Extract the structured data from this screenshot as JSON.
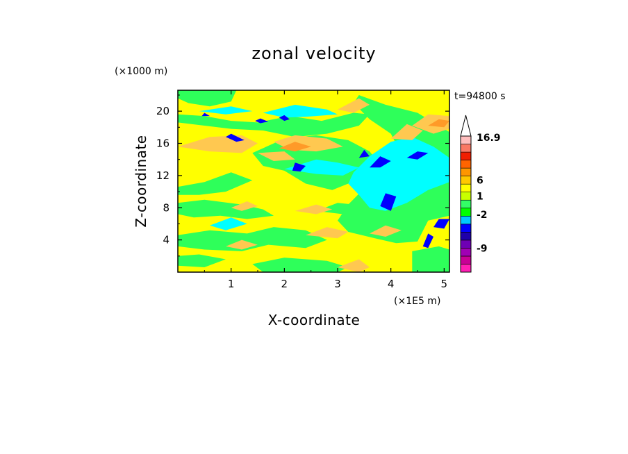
{
  "chart_data": {
    "type": "heatmap",
    "title": "zonal velocity",
    "xlabel": "X-coordinate",
    "ylabel": "Z-coordinate",
    "x_unit": "(×1E5 m)",
    "y_unit": "(×1000 m)",
    "time_label": "t=94800 s",
    "xlim": [
      0,
      5.1
    ],
    "ylim": [
      0,
      22.6
    ],
    "x_ticks": [
      1,
      2,
      3,
      4,
      5
    ],
    "y_ticks": [
      4,
      8,
      12,
      16,
      20
    ],
    "colorbar": {
      "labels": [
        {
          "value": "16.9",
          "level": 16.9
        },
        {
          "value": "6",
          "level": 6
        },
        {
          "value": "1",
          "level": 1
        },
        {
          "value": "-2",
          "level": -2
        },
        {
          "value": "-9",
          "level": -9
        }
      ],
      "bands": [
        {
          "color": "#ff1fb4"
        },
        {
          "color": "#c80096"
        },
        {
          "color": "#a000b4"
        },
        {
          "color": "#6e00b4"
        },
        {
          "color": "#1e00aa"
        },
        {
          "color": "#0000ff"
        },
        {
          "color": "#00c8ff"
        },
        {
          "color": "#00ff00"
        },
        {
          "color": "#33ff66"
        },
        {
          "color": "#c8ff00"
        },
        {
          "color": "#ffff00"
        },
        {
          "color": "#ffc800"
        },
        {
          "color": "#ff9600"
        },
        {
          "color": "#ff6400"
        },
        {
          "color": "#f01e00"
        },
        {
          "color": "#fa7864"
        },
        {
          "color": "#ffbebe"
        }
      ],
      "overflow_color": "#ffffff"
    },
    "field_colors": {
      "background": "#ffff00",
      "green": "#2eff5a",
      "cyan": "#00ffff",
      "blue": "#0000ff",
      "orange": "#ffc850",
      "dark_orange": "#ff9a28"
    },
    "features": [
      {
        "kind": "green",
        "points": [
          [
            0,
            22.6
          ],
          [
            1.1,
            22.6
          ],
          [
            1.0,
            21.2
          ],
          [
            0.6,
            20.6
          ],
          [
            0.2,
            21.0
          ],
          [
            0,
            21.6
          ]
        ]
      },
      {
        "kind": "green",
        "points": [
          [
            0,
            19.6
          ],
          [
            0.5,
            19.4
          ],
          [
            1.0,
            18.8
          ],
          [
            1.5,
            18.6
          ],
          [
            2.1,
            19.4
          ],
          [
            2.7,
            18.8
          ],
          [
            3.3,
            19.8
          ],
          [
            3.6,
            19.6
          ],
          [
            3.4,
            18.2
          ],
          [
            2.8,
            17.2
          ],
          [
            2.2,
            16.8
          ],
          [
            1.6,
            17.6
          ],
          [
            1.0,
            17.8
          ],
          [
            0.5,
            18.2
          ],
          [
            0,
            18.6
          ]
        ]
      },
      {
        "kind": "cyan",
        "points": [
          [
            0.4,
            20.0
          ],
          [
            1.0,
            20.6
          ],
          [
            1.4,
            20.0
          ],
          [
            0.9,
            19.6
          ]
        ]
      },
      {
        "kind": "cyan",
        "points": [
          [
            1.6,
            19.8
          ],
          [
            2.2,
            20.8
          ],
          [
            2.8,
            20.2
          ],
          [
            3.0,
            19.6
          ],
          [
            2.4,
            19.3
          ],
          [
            2.0,
            19.2
          ]
        ]
      },
      {
        "kind": "green",
        "points": [
          [
            1.4,
            14.8
          ],
          [
            2.0,
            16.6
          ],
          [
            2.6,
            17.0
          ],
          [
            3.2,
            16.4
          ],
          [
            3.6,
            15.0
          ],
          [
            3.8,
            13.4
          ],
          [
            3.4,
            12.4
          ],
          [
            3.2,
            11.0
          ],
          [
            2.9,
            10.2
          ],
          [
            2.4,
            11.0
          ],
          [
            2.0,
            12.6
          ],
          [
            1.6,
            13.2
          ]
        ]
      },
      {
        "kind": "cyan",
        "points": [
          [
            2.0,
            12.8
          ],
          [
            2.6,
            14.0
          ],
          [
            3.0,
            13.6
          ],
          [
            3.4,
            13.0
          ],
          [
            3.1,
            12.0
          ],
          [
            2.6,
            12.2
          ]
        ]
      },
      {
        "kind": "green",
        "points": [
          [
            0,
            10.6
          ],
          [
            0.5,
            11.2
          ],
          [
            1.0,
            12.4
          ],
          [
            1.4,
            11.4
          ],
          [
            0.9,
            10.0
          ],
          [
            0.4,
            9.6
          ],
          [
            0,
            9.6
          ]
        ]
      },
      {
        "kind": "green",
        "points": [
          [
            3.4,
            22.0
          ],
          [
            3.9,
            20.8
          ],
          [
            4.5,
            19.8
          ],
          [
            5.1,
            17.4
          ],
          [
            5.1,
            7.0
          ],
          [
            4.7,
            6.4
          ],
          [
            4.5,
            3.8
          ],
          [
            4.1,
            3.6
          ],
          [
            3.7,
            4.2
          ],
          [
            3.2,
            5.0
          ],
          [
            3.0,
            6.4
          ],
          [
            3.2,
            8.4
          ],
          [
            3.5,
            10.4
          ],
          [
            3.8,
            12.2
          ],
          [
            4.2,
            14.6
          ],
          [
            4.0,
            17.2
          ],
          [
            3.6,
            19.0
          ],
          [
            3.3,
            21.0
          ]
        ]
      },
      {
        "kind": "cyan",
        "points": [
          [
            3.3,
            12.4
          ],
          [
            3.6,
            14.4
          ],
          [
            4.0,
            16.2
          ],
          [
            4.4,
            16.8
          ],
          [
            4.8,
            15.6
          ],
          [
            5.1,
            14.2
          ],
          [
            5.1,
            11.2
          ],
          [
            4.7,
            10.2
          ],
          [
            4.3,
            8.6
          ],
          [
            3.9,
            7.6
          ],
          [
            3.6,
            8.0
          ],
          [
            3.4,
            9.6
          ],
          [
            3.2,
            11.0
          ]
        ]
      },
      {
        "kind": "cyan",
        "points": [
          [
            4.6,
            12.6
          ],
          [
            5.0,
            12.2
          ],
          [
            5.1,
            13.6
          ],
          [
            4.9,
            14.2
          ]
        ]
      },
      {
        "kind": "green",
        "points": [
          [
            0,
            8.6
          ],
          [
            0.5,
            9.0
          ],
          [
            1.2,
            8.4
          ],
          [
            1.6,
            7.8
          ],
          [
            1.8,
            7.0
          ],
          [
            1.3,
            6.6
          ],
          [
            0.8,
            7.0
          ],
          [
            0.3,
            6.8
          ],
          [
            0,
            7.2
          ]
        ]
      },
      {
        "kind": "cyan",
        "points": [
          [
            0.6,
            5.8
          ],
          [
            1.0,
            6.8
          ],
          [
            1.3,
            6.0
          ],
          [
            0.9,
            5.2
          ]
        ]
      },
      {
        "kind": "green",
        "points": [
          [
            0,
            4.6
          ],
          [
            0.6,
            5.2
          ],
          [
            1.3,
            4.8
          ],
          [
            1.8,
            5.6
          ],
          [
            2.4,
            5.2
          ],
          [
            2.8,
            4.0
          ],
          [
            2.4,
            3.0
          ],
          [
            1.7,
            3.4
          ],
          [
            1.2,
            2.6
          ],
          [
            0.5,
            2.8
          ],
          [
            0,
            3.2
          ]
        ]
      },
      {
        "kind": "green",
        "points": [
          [
            2.6,
            7.6
          ],
          [
            3.0,
            8.6
          ],
          [
            3.3,
            8.4
          ],
          [
            3.1,
            7.2
          ]
        ]
      },
      {
        "kind": "green",
        "points": [
          [
            0,
            2.0
          ],
          [
            0.4,
            2.2
          ],
          [
            0.9,
            1.6
          ],
          [
            0.5,
            0.6
          ],
          [
            0,
            0.8
          ]
        ]
      },
      {
        "kind": "green",
        "points": [
          [
            1.4,
            1.0
          ],
          [
            2.0,
            1.8
          ],
          [
            2.8,
            1.4
          ],
          [
            3.2,
            0.6
          ],
          [
            3.0,
            0
          ],
          [
            1.6,
            0
          ]
        ]
      },
      {
        "kind": "green",
        "points": [
          [
            4.4,
            2.6
          ],
          [
            4.9,
            3.2
          ],
          [
            5.1,
            2.8
          ],
          [
            5.1,
            0
          ],
          [
            4.4,
            0
          ]
        ]
      },
      {
        "kind": "orange",
        "points": [
          [
            0,
            15.6
          ],
          [
            0.6,
            16.8
          ],
          [
            1.2,
            17.0
          ],
          [
            1.5,
            16.0
          ],
          [
            1.2,
            14.8
          ],
          [
            0.6,
            15.0
          ]
        ]
      },
      {
        "kind": "orange",
        "points": [
          [
            1.8,
            16.2
          ],
          [
            2.2,
            17.0
          ],
          [
            2.8,
            16.6
          ],
          [
            3.1,
            15.6
          ],
          [
            2.6,
            15.0
          ],
          [
            2.1,
            15.2
          ]
        ]
      },
      {
        "kind": "orange",
        "points": [
          [
            1.5,
            14.8
          ],
          [
            1.8,
            13.8
          ],
          [
            2.2,
            14.0
          ],
          [
            2.0,
            15.0
          ]
        ]
      },
      {
        "kind": "orange",
        "points": [
          [
            4.4,
            18.2
          ],
          [
            4.7,
            19.6
          ],
          [
            5.1,
            19.4
          ],
          [
            5.1,
            17.8
          ],
          [
            4.8,
            17.2
          ]
        ]
      },
      {
        "kind": "orange",
        "points": [
          [
            3.0,
            20.2
          ],
          [
            3.4,
            21.6
          ],
          [
            3.6,
            20.8
          ],
          [
            3.3,
            19.8
          ]
        ]
      },
      {
        "kind": "orange",
        "points": [
          [
            4.0,
            16.6
          ],
          [
            4.3,
            18.4
          ],
          [
            4.6,
            17.6
          ],
          [
            4.4,
            16.4
          ]
        ]
      },
      {
        "kind": "orange",
        "points": [
          [
            2.2,
            7.6
          ],
          [
            2.6,
            8.4
          ],
          [
            2.9,
            7.8
          ],
          [
            2.6,
            7.2
          ]
        ]
      },
      {
        "kind": "orange",
        "points": [
          [
            2.4,
            4.6
          ],
          [
            2.8,
            5.6
          ],
          [
            3.2,
            5.0
          ],
          [
            3.0,
            4.2
          ]
        ]
      },
      {
        "kind": "orange",
        "points": [
          [
            3.6,
            4.8
          ],
          [
            3.9,
            5.8
          ],
          [
            4.2,
            5.2
          ],
          [
            3.9,
            4.4
          ]
        ]
      },
      {
        "kind": "orange",
        "points": [
          [
            0.9,
            3.2
          ],
          [
            1.2,
            4.0
          ],
          [
            1.5,
            3.4
          ],
          [
            1.2,
            2.8
          ]
        ]
      },
      {
        "kind": "orange",
        "points": [
          [
            1.0,
            8.0
          ],
          [
            1.3,
            8.8
          ],
          [
            1.5,
            8.2
          ],
          [
            1.2,
            7.6
          ]
        ]
      },
      {
        "kind": "orange",
        "points": [
          [
            3.0,
            0.6
          ],
          [
            3.4,
            1.6
          ],
          [
            3.6,
            0.6
          ],
          [
            3.4,
            0
          ]
        ]
      },
      {
        "kind": "dark_orange",
        "points": [
          [
            1.9,
            15.4
          ],
          [
            2.2,
            16.2
          ],
          [
            2.5,
            15.6
          ],
          [
            2.2,
            15.0
          ]
        ]
      },
      {
        "kind": "dark_orange",
        "points": [
          [
            4.7,
            18.2
          ],
          [
            4.9,
            19.0
          ],
          [
            5.1,
            18.8
          ],
          [
            5.0,
            18.0
          ]
        ]
      },
      {
        "kind": "blue",
        "points": [
          [
            0.9,
            16.8
          ],
          [
            1.0,
            17.2
          ],
          [
            1.25,
            16.4
          ],
          [
            1.1,
            16.2
          ]
        ]
      },
      {
        "kind": "blue",
        "points": [
          [
            1.45,
            18.8
          ],
          [
            1.55,
            19.1
          ],
          [
            1.7,
            18.7
          ],
          [
            1.55,
            18.5
          ]
        ]
      },
      {
        "kind": "blue",
        "points": [
          [
            1.9,
            19.2
          ],
          [
            2.0,
            19.5
          ],
          [
            2.1,
            19.0
          ],
          [
            2.0,
            18.8
          ]
        ]
      },
      {
        "kind": "blue",
        "points": [
          [
            0.45,
            19.4
          ],
          [
            0.5,
            19.8
          ],
          [
            0.6,
            19.4
          ]
        ]
      },
      {
        "kind": "blue",
        "points": [
          [
            2.15,
            12.6
          ],
          [
            2.2,
            13.6
          ],
          [
            2.4,
            13.2
          ],
          [
            2.3,
            12.5
          ]
        ]
      },
      {
        "kind": "blue",
        "points": [
          [
            3.4,
            14.2
          ],
          [
            3.5,
            15.2
          ],
          [
            3.6,
            14.4
          ]
        ]
      },
      {
        "kind": "blue",
        "points": [
          [
            3.6,
            13.0
          ],
          [
            3.8,
            14.4
          ],
          [
            4.0,
            13.8
          ],
          [
            3.8,
            13.0
          ]
        ]
      },
      {
        "kind": "blue",
        "points": [
          [
            4.3,
            14.2
          ],
          [
            4.5,
            15.0
          ],
          [
            4.7,
            14.8
          ],
          [
            4.5,
            14.0
          ]
        ]
      },
      {
        "kind": "blue",
        "points": [
          [
            3.8,
            8.2
          ],
          [
            3.9,
            9.8
          ],
          [
            4.1,
            9.4
          ],
          [
            4.0,
            7.6
          ]
        ]
      },
      {
        "kind": "blue",
        "points": [
          [
            4.8,
            5.6
          ],
          [
            4.9,
            6.6
          ],
          [
            5.1,
            6.6
          ],
          [
            5.0,
            5.4
          ]
        ]
      },
      {
        "kind": "blue",
        "points": [
          [
            4.6,
            3.2
          ],
          [
            4.7,
            4.8
          ],
          [
            4.8,
            4.4
          ],
          [
            4.7,
            3.0
          ]
        ]
      }
    ]
  }
}
